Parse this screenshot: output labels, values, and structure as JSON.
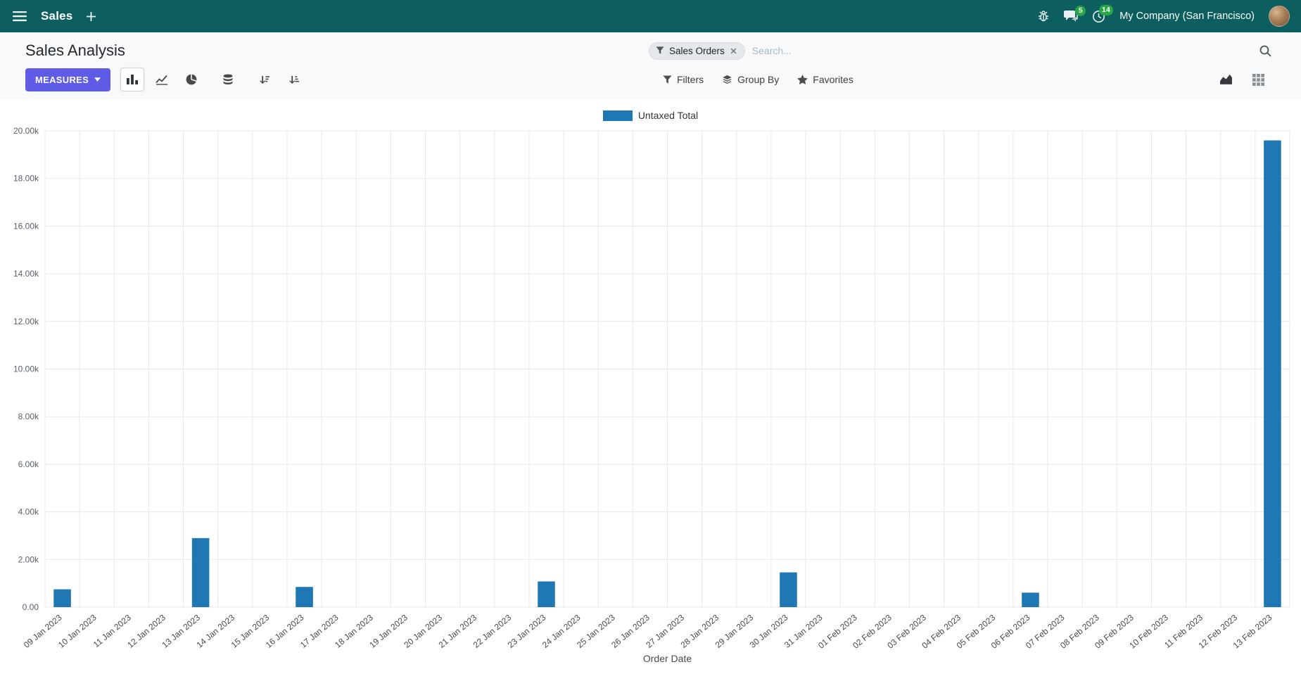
{
  "topbar": {
    "app_name": "Sales",
    "company": "My Company (San Francisco)",
    "chat_badge": "5",
    "activity_badge": "14"
  },
  "control_panel": {
    "title": "Sales Analysis",
    "measures_label": "MEASURES",
    "filters_label": "Filters",
    "group_by_label": "Group By",
    "favorites_label": "Favorites",
    "search": {
      "facet": "Sales Orders",
      "placeholder": "Search..."
    }
  },
  "chart_data": {
    "type": "bar",
    "title": "",
    "categories": [
      "09 Jan 2023",
      "10 Jan 2023",
      "11 Jan 2023",
      "12 Jan 2023",
      "13 Jan 2023",
      "14 Jan 2023",
      "15 Jan 2023",
      "16 Jan 2023",
      "17 Jan 2023",
      "18 Jan 2023",
      "19 Jan 2023",
      "20 Jan 2023",
      "21 Jan 2023",
      "22 Jan 2023",
      "23 Jan 2023",
      "24 Jan 2023",
      "25 Jan 2023",
      "26 Jan 2023",
      "27 Jan 2023",
      "28 Jan 2023",
      "29 Jan 2023",
      "30 Jan 2023",
      "31 Jan 2023",
      "01 Feb 2023",
      "02 Feb 2023",
      "03 Feb 2023",
      "04 Feb 2023",
      "05 Feb 2023",
      "06 Feb 2023",
      "07 Feb 2023",
      "08 Feb 2023",
      "09 Feb 2023",
      "10 Feb 2023",
      "11 Feb 2023",
      "12 Feb 2023",
      "13 Feb 2023"
    ],
    "series": [
      {
        "name": "Untaxed Total",
        "color": "#1f77b4",
        "values": [
          750,
          0,
          0,
          0,
          2900,
          0,
          0,
          850,
          0,
          0,
          0,
          0,
          0,
          0,
          1080,
          0,
          0,
          0,
          0,
          0,
          0,
          1460,
          0,
          0,
          0,
          0,
          0,
          0,
          610,
          0,
          0,
          0,
          0,
          0,
          0,
          19600
        ]
      }
    ],
    "xlabel": "Order Date",
    "ylabel": "",
    "ylim": [
      0,
      20000
    ],
    "ytick_step": 2000,
    "legend_position": "top",
    "grid": true
  },
  "colors": {
    "topbar_bg": "#0d5e5e",
    "primary": "#5e5ce6",
    "badge": "#28a745",
    "bar": "#1f77b4"
  }
}
